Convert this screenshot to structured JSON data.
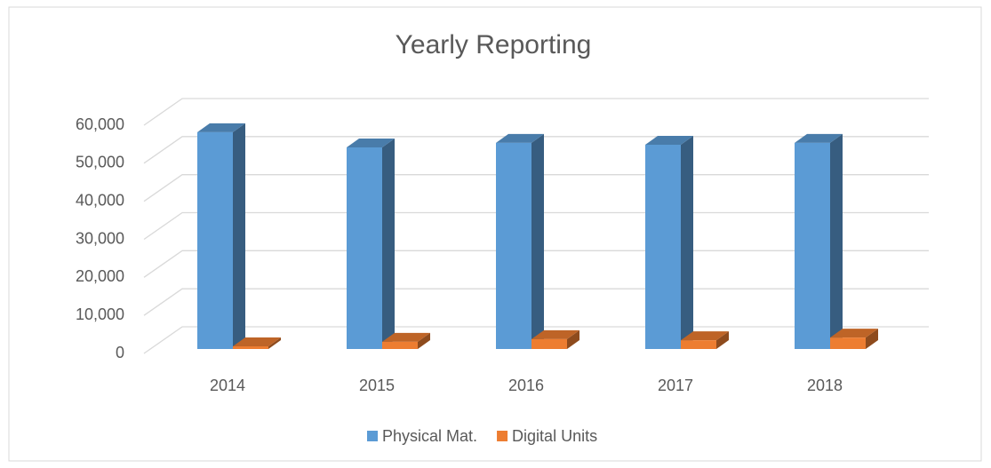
{
  "chart_data": {
    "type": "bar3d",
    "title": "Yearly Reporting",
    "categories": [
      "2014",
      "2015",
      "2016",
      "2017",
      "2018"
    ],
    "series": [
      {
        "name": "Physical Mat.",
        "color": "#5b9bd5",
        "values": [
          57000,
          53000,
          54200,
          53700,
          54200
        ]
      },
      {
        "name": "Digital Units",
        "color": "#ed7d31",
        "values": [
          700,
          1900,
          2600,
          2300,
          3000
        ]
      }
    ],
    "ylim": [
      0,
      60000
    ],
    "yticks": [
      0,
      {
        "value": 10000,
        "label": "10,000"
      },
      {
        "value": 20000,
        "label": "20,000"
      },
      {
        "value": 30000,
        "label": "30,000"
      },
      {
        "value": 40000,
        "label": "40,000"
      },
      {
        "value": 50000,
        "label": "50,000"
      },
      {
        "value": 60000,
        "label": "60,000"
      }
    ],
    "grid": true,
    "legend": "bottom"
  }
}
